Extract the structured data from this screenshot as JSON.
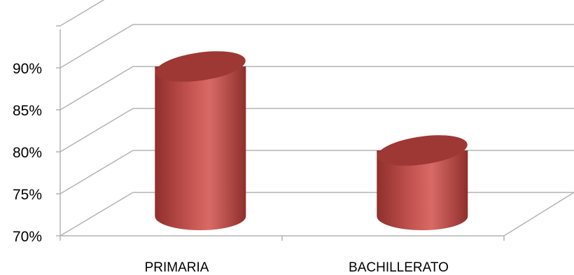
{
  "chart_data": {
    "type": "bar",
    "style": "3d-cylinder",
    "categories": [
      "PRIMARIA",
      "BACHILLERATO"
    ],
    "series": [
      {
        "values": [
          90,
          80
        ]
      }
    ],
    "ylim": [
      70,
      95
    ],
    "y_ticks": [
      "70%",
      "75%",
      "80%",
      "85%",
      "90%"
    ],
    "grid": true,
    "legend": "none",
    "title": "",
    "xlabel": "",
    "ylabel": "",
    "colors": {
      "bar_main": "#c0504d",
      "bar_light": "#d86a66",
      "bar_dark": "#8f2f2c",
      "bar_top": "#9e3835",
      "grid": "#b3b3b3"
    }
  }
}
